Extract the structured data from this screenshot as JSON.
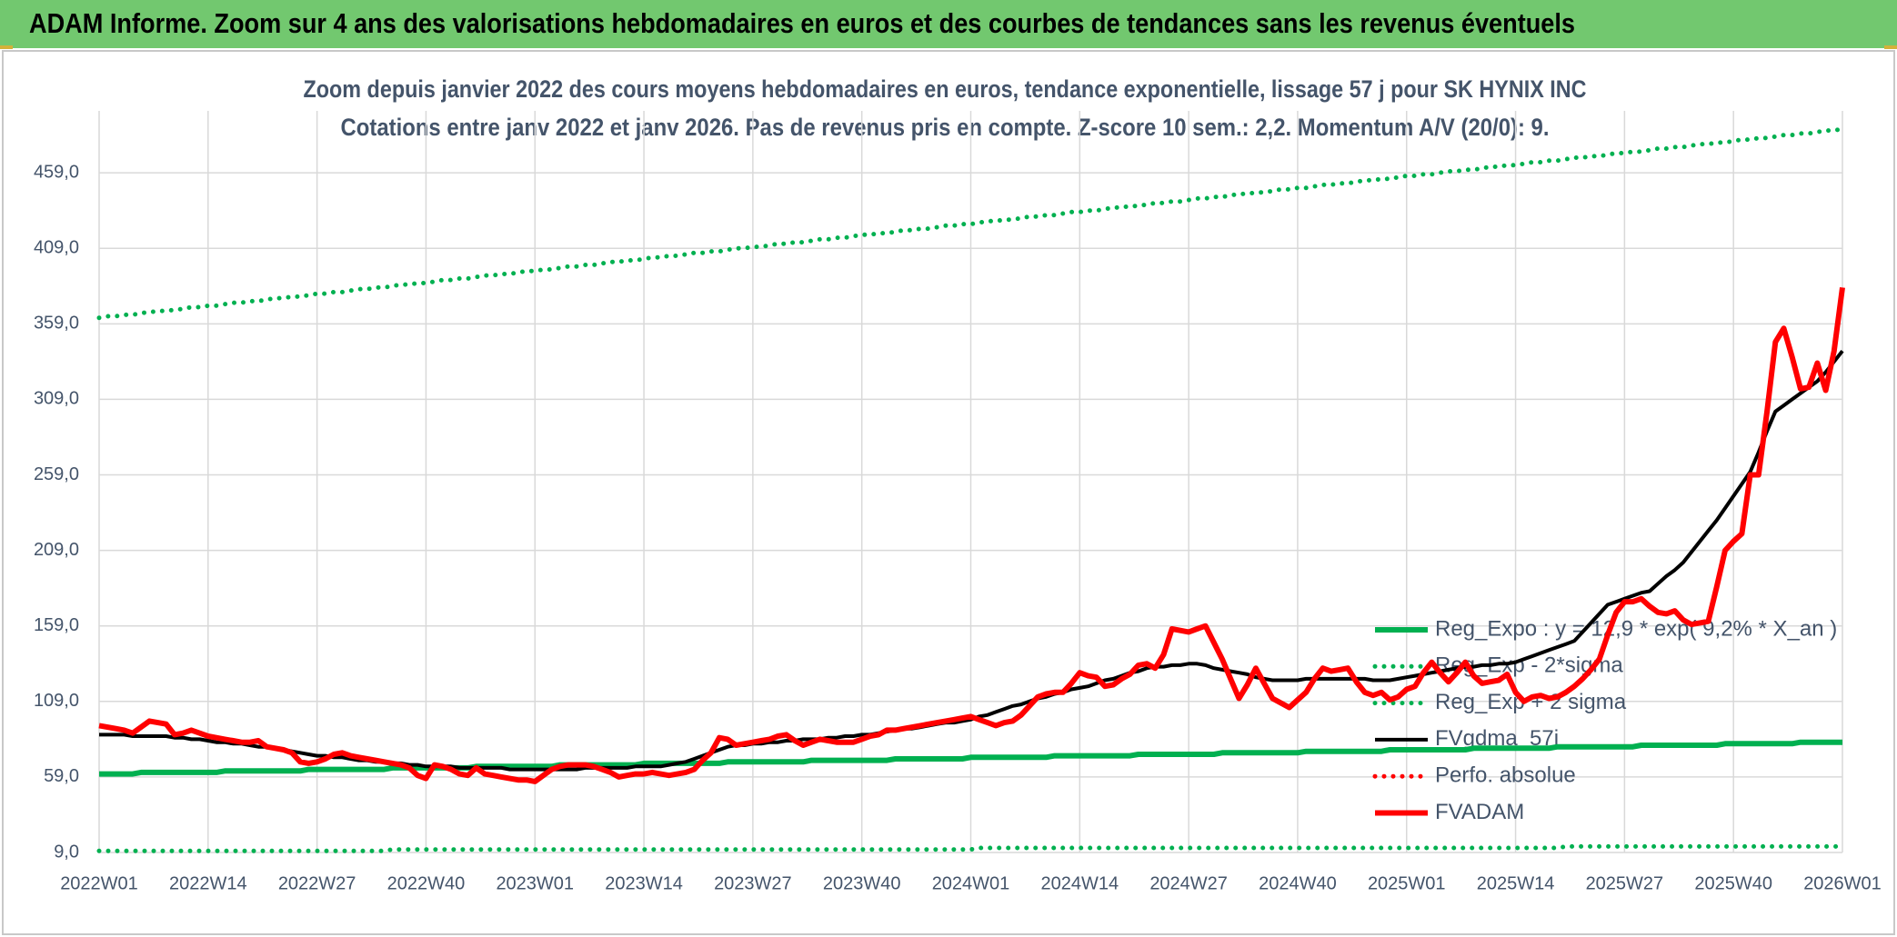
{
  "chart_data": {
    "type": "line",
    "header": "ADAM Informe. Zoom sur 4 ans des valorisations hebdomadaires en euros et des courbes de tendances sans les revenus éventuels",
    "title": "Zoom depuis janvier 2022 des cours moyens hebdomadaires en euros, tendance exponentielle, lissage 57 j pour SK HYNIX INC",
    "subtitle": "Cotations entre janv 2022 et janv 2026. Pas de revenus pris en compte. Z-score 10 sem.: 2,2. Momentum A/V (20/0): 9.",
    "grid": true,
    "legend": "right",
    "ylim": [
      9,
      500
    ],
    "yticks": [
      {
        "value": 9,
        "label": "9,0"
      },
      {
        "value": 59,
        "label": "59,0"
      },
      {
        "value": 109,
        "label": "109,0"
      },
      {
        "value": 159,
        "label": "159,0"
      },
      {
        "value": 209,
        "label": "209,0"
      },
      {
        "value": 259,
        "label": "259,0"
      },
      {
        "value": 309,
        "label": "309,0"
      },
      {
        "value": 359,
        "label": "359,0"
      },
      {
        "value": 409,
        "label": "409,0"
      },
      {
        "value": 459,
        "label": "459,0"
      }
    ],
    "categories": [
      "2022W01",
      null,
      null,
      null,
      null,
      null,
      null,
      null,
      null,
      null,
      null,
      null,
      null,
      "2022W14",
      null,
      null,
      null,
      null,
      null,
      null,
      null,
      null,
      null,
      null,
      null,
      null,
      "2022W27",
      null,
      null,
      null,
      null,
      null,
      null,
      null,
      null,
      null,
      null,
      null,
      null,
      "2022W40",
      null,
      null,
      null,
      null,
      null,
      null,
      null,
      null,
      null,
      null,
      null,
      null,
      "2023W01",
      null,
      null,
      null,
      null,
      null,
      null,
      null,
      null,
      null,
      null,
      null,
      null,
      "2023W14",
      null,
      null,
      null,
      null,
      null,
      null,
      null,
      null,
      null,
      null,
      null,
      null,
      "2023W27",
      null,
      null,
      null,
      null,
      null,
      null,
      null,
      null,
      null,
      null,
      null,
      null,
      "2023W40",
      null,
      null,
      null,
      null,
      null,
      null,
      null,
      null,
      null,
      null,
      null,
      null,
      "2024W01",
      null,
      null,
      null,
      null,
      null,
      null,
      null,
      null,
      null,
      null,
      null,
      null,
      "2024W14",
      null,
      null,
      null,
      null,
      null,
      null,
      null,
      null,
      null,
      null,
      null,
      null,
      "2024W27",
      null,
      null,
      null,
      null,
      null,
      null,
      null,
      null,
      null,
      null,
      null,
      null,
      "2024W40",
      null,
      null,
      null,
      null,
      null,
      null,
      null,
      null,
      null,
      null,
      null,
      null,
      "2025W01",
      null,
      null,
      null,
      null,
      null,
      null,
      null,
      null,
      null,
      null,
      null,
      null,
      "2025W14",
      null,
      null,
      null,
      null,
      null,
      null,
      null,
      null,
      null,
      null,
      null,
      null,
      "2025W27",
      null,
      null,
      null,
      null,
      null,
      null,
      null,
      null,
      null,
      null,
      null,
      null,
      "2025W40",
      null,
      null,
      null,
      null,
      null,
      null,
      null,
      null,
      null,
      null,
      null,
      null,
      "2026W01"
    ],
    "series": [
      {
        "name": "Reg_Expo : y = 12,9 * exp( 9,2% *  X_an )",
        "color": "#00b050",
        "style": "solid",
        "values": [
          61,
          61,
          61,
          61,
          61,
          62,
          62,
          62,
          62,
          62,
          62,
          62,
          62,
          62,
          62,
          63,
          63,
          63,
          63,
          63,
          63,
          63,
          63,
          63,
          63,
          64,
          64,
          64,
          64,
          64,
          64,
          64,
          64,
          64,
          64,
          65,
          65,
          65,
          65,
          65,
          65,
          65,
          65,
          65,
          65,
          66,
          66,
          66,
          66,
          66,
          66,
          66,
          66,
          66,
          66,
          67,
          67,
          67,
          67,
          67,
          67,
          67,
          67,
          67,
          67,
          68,
          68,
          68,
          68,
          68,
          68,
          68,
          68,
          68,
          68,
          69,
          69,
          69,
          69,
          69,
          69,
          69,
          69,
          69,
          69,
          70,
          70,
          70,
          70,
          70,
          70,
          70,
          70,
          70,
          70,
          71,
          71,
          71,
          71,
          71,
          71,
          71,
          71,
          71,
          72,
          72,
          72,
          72,
          72,
          72,
          72,
          72,
          72,
          72,
          73,
          73,
          73,
          73,
          73,
          73,
          73,
          73,
          73,
          73,
          74,
          74,
          74,
          74,
          74,
          74,
          74,
          74,
          74,
          74,
          75,
          75,
          75,
          75,
          75,
          75,
          75,
          75,
          75,
          75,
          76,
          76,
          76,
          76,
          76,
          76,
          76,
          76,
          76,
          76,
          77,
          77,
          77,
          77,
          77,
          77,
          77,
          77,
          77,
          77,
          78,
          78,
          78,
          78,
          78,
          78,
          78,
          78,
          78,
          78,
          79,
          79,
          79,
          79,
          79,
          79,
          79,
          79,
          79,
          79,
          80,
          80,
          80,
          80,
          80,
          80,
          80,
          80,
          80,
          80,
          81,
          81,
          81,
          81,
          81,
          81,
          81,
          81,
          81,
          82,
          82,
          82,
          82,
          82,
          82
        ]
      },
      {
        "name": "Reg_Exp - 2*sigma",
        "color": "#00b050",
        "style": "dotted",
        "values": [
          10,
          10,
          10,
          10,
          10,
          10,
          10,
          10,
          10,
          10,
          10,
          10,
          10,
          10,
          10,
          10,
          10,
          10,
          10,
          10,
          10,
          10,
          10,
          10,
          10,
          10,
          10,
          10,
          10,
          10,
          10,
          10,
          10,
          10,
          10,
          11,
          11,
          11,
          11,
          11,
          11,
          11,
          11,
          11,
          11,
          11,
          11,
          11,
          11,
          11,
          11,
          11,
          11,
          11,
          11,
          11,
          11,
          11,
          11,
          11,
          11,
          11,
          11,
          11,
          11,
          11,
          11,
          11,
          11,
          11,
          11,
          11,
          11,
          11,
          11,
          11,
          11,
          11,
          11,
          11,
          11,
          11,
          11,
          11,
          11,
          11,
          11,
          11,
          11,
          11,
          11,
          11,
          11,
          11,
          11,
          11,
          11,
          11,
          11,
          11,
          11,
          11,
          11,
          11,
          11,
          12,
          12,
          12,
          12,
          12,
          12,
          12,
          12,
          12,
          12,
          12,
          12,
          12,
          12,
          12,
          12,
          12,
          12,
          12,
          12,
          12,
          12,
          12,
          12,
          12,
          12,
          12,
          12,
          12,
          12,
          12,
          12,
          12,
          12,
          12,
          12,
          12,
          12,
          12,
          12,
          12,
          12,
          12,
          12,
          12,
          12,
          12,
          12,
          12,
          12,
          12,
          12,
          12,
          12,
          12,
          12,
          12,
          12,
          12,
          12,
          12,
          12,
          12,
          12,
          12,
          12,
          12,
          12,
          12,
          12,
          13,
          13,
          13,
          13,
          13,
          13,
          13,
          13,
          13,
          13,
          13,
          13,
          13,
          13,
          13,
          13,
          13,
          13,
          13,
          13,
          13,
          13,
          13,
          13,
          13,
          13,
          13,
          13,
          13,
          13,
          13,
          13,
          13,
          13
        ]
      },
      {
        "name": "Reg_Exp + 2 sigma",
        "color": "#00b050",
        "style": "dotted",
        "values": [
          363,
          364,
          364,
          365,
          365,
          366,
          367,
          367,
          368,
          368,
          369,
          370,
          370,
          371,
          371,
          372,
          373,
          373,
          374,
          374,
          375,
          376,
          376,
          377,
          377,
          378,
          379,
          379,
          380,
          380,
          381,
          382,
          382,
          383,
          383,
          384,
          385,
          385,
          386,
          386,
          387,
          388,
          388,
          389,
          389,
          390,
          391,
          391,
          392,
          392,
          393,
          394,
          394,
          395,
          395,
          396,
          397,
          397,
          398,
          398,
          399,
          400,
          400,
          401,
          401,
          402,
          403,
          403,
          404,
          404,
          405,
          406,
          406,
          407,
          407,
          408,
          409,
          409,
          410,
          410,
          411,
          412,
          412,
          413,
          413,
          414,
          415,
          415,
          416,
          416,
          417,
          418,
          418,
          419,
          419,
          420,
          421,
          421,
          422,
          422,
          423,
          424,
          424,
          425,
          425,
          426,
          427,
          427,
          428,
          428,
          429,
          430,
          430,
          431,
          431,
          432,
          433,
          433,
          434,
          434,
          435,
          436,
          436,
          437,
          437,
          438,
          439,
          439,
          440,
          440,
          441,
          442,
          442,
          443,
          443,
          444,
          445,
          445,
          446,
          446,
          447,
          448,
          448,
          449,
          449,
          450,
          451,
          451,
          452,
          452,
          453,
          454,
          454,
          455,
          455,
          456,
          457,
          457,
          458,
          458,
          459,
          460,
          460,
          461,
          461,
          462,
          463,
          463,
          464,
          464,
          465,
          466,
          466,
          467,
          467,
          468,
          469,
          469,
          470,
          470,
          471,
          472,
          472,
          473,
          473,
          474,
          475,
          475,
          476,
          476,
          477,
          478,
          478,
          479,
          479,
          480,
          481,
          481,
          482,
          482,
          483,
          484,
          484,
          485,
          485,
          486,
          487,
          487,
          488
        ]
      },
      {
        "name": "FVgdma_57j",
        "color": "#000000",
        "style": "solid",
        "values": [
          87,
          87,
          87,
          87,
          86,
          86,
          86,
          86,
          86,
          85,
          85,
          84,
          84,
          83,
          82,
          82,
          81,
          81,
          80,
          79,
          79,
          78,
          77,
          76,
          75,
          74,
          73,
          73,
          72,
          72,
          71,
          70,
          70,
          69,
          69,
          68,
          68,
          67,
          67,
          66,
          66,
          66,
          66,
          65,
          65,
          65,
          65,
          65,
          65,
          64,
          64,
          64,
          64,
          64,
          64,
          64,
          64,
          64,
          65,
          65,
          65,
          65,
          65,
          65,
          66,
          66,
          66,
          66,
          67,
          68,
          69,
          71,
          73,
          75,
          77,
          79,
          80,
          80,
          81,
          81,
          82,
          82,
          83,
          83,
          84,
          84,
          84,
          85,
          85,
          86,
          86,
          87,
          87,
          88,
          89,
          90,
          91,
          91,
          92,
          93,
          94,
          95,
          95,
          96,
          97,
          99,
          100,
          102,
          104,
          106,
          107,
          109,
          111,
          112,
          114,
          115,
          117,
          118,
          119,
          121,
          123,
          124,
          126,
          128,
          129,
          131,
          132,
          132,
          133,
          133,
          134,
          134,
          133,
          131,
          130,
          129,
          128,
          127,
          125,
          124,
          123,
          123,
          123,
          123,
          124,
          124,
          124,
          124,
          124,
          124,
          124,
          124,
          123,
          123,
          123,
          124,
          125,
          126,
          127,
          128,
          129,
          130,
          131,
          132,
          132,
          133,
          133,
          134,
          134,
          135,
          137,
          139,
          141,
          143,
          145,
          147,
          149,
          155,
          161,
          167,
          173,
          175,
          177,
          179,
          181,
          182,
          187,
          192,
          196,
          201,
          208,
          215,
          222,
          229,
          237,
          245,
          253,
          261,
          274,
          288,
          301,
          305,
          309,
          313,
          317,
          321,
          327,
          334,
          341
        ]
      },
      {
        "name": "Perfo. absolue",
        "color": "#ff0000",
        "style": "dotted"
      },
      {
        "name": "FVADAM",
        "color": "#ff0000",
        "style": "solid",
        "values": [
          93,
          92,
          91,
          90,
          88,
          92,
          96,
          95,
          94,
          87,
          88,
          90,
          88,
          86,
          85,
          84,
          83,
          82,
          82,
          83,
          79,
          78,
          77,
          75,
          69,
          68,
          69,
          71,
          74,
          75,
          73,
          72,
          71,
          70,
          69,
          68,
          67,
          65,
          60,
          58,
          67,
          66,
          64,
          61,
          60,
          65,
          61,
          60,
          59,
          58,
          57,
          57,
          56,
          60,
          64,
          66,
          67,
          67,
          67,
          66,
          64,
          62,
          59,
          60,
          61,
          61,
          62,
          61,
          60,
          61,
          62,
          64,
          70,
          75,
          85,
          84,
          80,
          81,
          82,
          83,
          84,
          86,
          87,
          83,
          80,
          82,
          84,
          83,
          82,
          82,
          82,
          84,
          86,
          87,
          90,
          90,
          91,
          92,
          93,
          94,
          95,
          96,
          97,
          98,
          99,
          97,
          95,
          93,
          95,
          96,
          100,
          106,
          112,
          114,
          115,
          115,
          121,
          128,
          126,
          125,
          119,
          120,
          124,
          127,
          133,
          134,
          131,
          140,
          157,
          156,
          155,
          157,
          159,
          148,
          137,
          124,
          111,
          120,
          131,
          121,
          111,
          108,
          105,
          110,
          115,
          124,
          131,
          129,
          130,
          131,
          122,
          115,
          113,
          115,
          110,
          112,
          117,
          119,
          128,
          135,
          128,
          122,
          128,
          135,
          126,
          121,
          122,
          123,
          127,
          115,
          109,
          112,
          113,
          111,
          112,
          115,
          119,
          124,
          130,
          137,
          153,
          168,
          175,
          175,
          177,
          172,
          168,
          167,
          169,
          163,
          160,
          161,
          162,
          185,
          209,
          215,
          220,
          259,
          259,
          301,
          347,
          356,
          337,
          316,
          317,
          333,
          315,
          341,
          383
        ]
      }
    ]
  }
}
